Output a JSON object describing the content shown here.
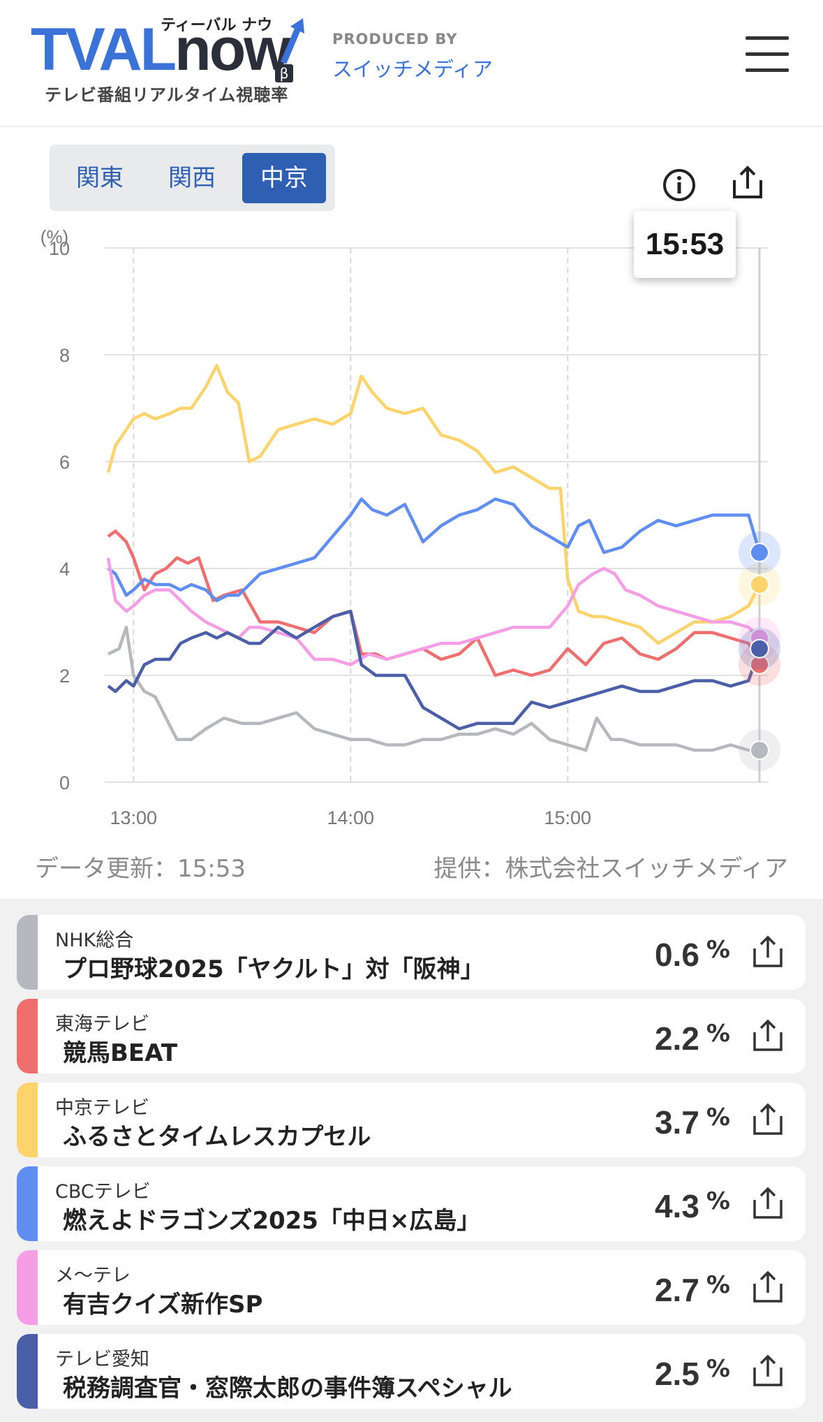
{
  "header": {
    "logo_main": "TVAL",
    "logo_now": "now",
    "logo_kana": "ティーバル ナウ",
    "logo_beta": "β",
    "logo_sub": "テレビ番組リアルタイム視聴率",
    "produced_by": "PRODUCED BY",
    "company": "スイッチメディア",
    "menu_icon": "hamburger-menu-icon"
  },
  "regions": {
    "tabs": [
      "関東",
      "関西",
      "中京"
    ],
    "active": "中京"
  },
  "icons": {
    "info": "info-icon",
    "share": "share-icon"
  },
  "tooltip_time": "15:53",
  "footer": {
    "updated": "データ更新：15:53",
    "provider": "提供：株式会社スイッチメディア"
  },
  "chart_data": {
    "type": "line",
    "ylabel": "(%)",
    "ylim": [
      0,
      10
    ],
    "yticks": [
      "0",
      "2",
      "4",
      "6",
      "8",
      "10"
    ],
    "x_range": [
      "12:53",
      "15:53"
    ],
    "xticks": [
      "13:00",
      "14:00",
      "15:00"
    ],
    "grid": true,
    "series": [
      {
        "name": "NHK総合",
        "color": "#b5b8bd",
        "points": [
          [
            "12:53",
            2.4
          ],
          [
            "12:56",
            2.5
          ],
          [
            "12:58",
            2.9
          ],
          [
            "13:00",
            2.0
          ],
          [
            "13:03",
            1.7
          ],
          [
            "13:06",
            1.6
          ],
          [
            "13:09",
            1.2
          ],
          [
            "13:12",
            0.8
          ],
          [
            "13:16",
            0.8
          ],
          [
            "13:20",
            1.0
          ],
          [
            "13:25",
            1.2
          ],
          [
            "13:30",
            1.1
          ],
          [
            "13:35",
            1.1
          ],
          [
            "13:40",
            1.2
          ],
          [
            "13:45",
            1.3
          ],
          [
            "13:50",
            1.0
          ],
          [
            "13:55",
            0.9
          ],
          [
            "14:00",
            0.8
          ],
          [
            "14:05",
            0.8
          ],
          [
            "14:10",
            0.7
          ],
          [
            "14:15",
            0.7
          ],
          [
            "14:20",
            0.8
          ],
          [
            "14:25",
            0.8
          ],
          [
            "14:30",
            0.9
          ],
          [
            "14:35",
            0.9
          ],
          [
            "14:40",
            1.0
          ],
          [
            "14:45",
            0.9
          ],
          [
            "14:50",
            1.1
          ],
          [
            "14:55",
            0.8
          ],
          [
            "15:00",
            0.7
          ],
          [
            "15:05",
            0.6
          ],
          [
            "15:08",
            1.2
          ],
          [
            "15:12",
            0.8
          ],
          [
            "15:15",
            0.8
          ],
          [
            "15:20",
            0.7
          ],
          [
            "15:25",
            0.7
          ],
          [
            "15:30",
            0.7
          ],
          [
            "15:35",
            0.6
          ],
          [
            "15:40",
            0.6
          ],
          [
            "15:45",
            0.7
          ],
          [
            "15:50",
            0.6
          ],
          [
            "15:53",
            0.6
          ]
        ]
      },
      {
        "name": "東海テレビ",
        "color": "#ef6f6f",
        "points": [
          [
            "12:53",
            4.6
          ],
          [
            "12:55",
            4.7
          ],
          [
            "12:58",
            4.5
          ],
          [
            "13:00",
            4.2
          ],
          [
            "13:03",
            3.6
          ],
          [
            "13:06",
            3.9
          ],
          [
            "13:09",
            4.0
          ],
          [
            "13:12",
            4.2
          ],
          [
            "13:15",
            4.1
          ],
          [
            "13:18",
            4.2
          ],
          [
            "13:22",
            3.4
          ],
          [
            "13:25",
            3.5
          ],
          [
            "13:30",
            3.6
          ],
          [
            "13:35",
            3.0
          ],
          [
            "13:40",
            3.0
          ],
          [
            "13:45",
            2.9
          ],
          [
            "13:50",
            2.8
          ],
          [
            "13:55",
            3.1
          ],
          [
            "14:00",
            3.2
          ],
          [
            "14:03",
            2.4
          ],
          [
            "14:07",
            2.4
          ],
          [
            "14:10",
            2.3
          ],
          [
            "14:15",
            2.4
          ],
          [
            "14:20",
            2.5
          ],
          [
            "14:25",
            2.3
          ],
          [
            "14:30",
            2.4
          ],
          [
            "14:35",
            2.7
          ],
          [
            "14:40",
            2.0
          ],
          [
            "14:45",
            2.1
          ],
          [
            "14:50",
            2.0
          ],
          [
            "14:55",
            2.1
          ],
          [
            "15:00",
            2.5
          ],
          [
            "15:05",
            2.2
          ],
          [
            "15:10",
            2.6
          ],
          [
            "15:15",
            2.7
          ],
          [
            "15:20",
            2.4
          ],
          [
            "15:25",
            2.3
          ],
          [
            "15:30",
            2.5
          ],
          [
            "15:35",
            2.8
          ],
          [
            "15:40",
            2.8
          ],
          [
            "15:45",
            2.7
          ],
          [
            "15:50",
            2.6
          ],
          [
            "15:53",
            2.2
          ]
        ]
      },
      {
        "name": "中京テレビ",
        "color": "#fcd46b",
        "points": [
          [
            "12:53",
            5.8
          ],
          [
            "12:55",
            6.3
          ],
          [
            "12:58",
            6.6
          ],
          [
            "13:00",
            6.8
          ],
          [
            "13:03",
            6.9
          ],
          [
            "13:06",
            6.8
          ],
          [
            "13:10",
            6.9
          ],
          [
            "13:13",
            7.0
          ],
          [
            "13:16",
            7.0
          ],
          [
            "13:20",
            7.4
          ],
          [
            "13:23",
            7.8
          ],
          [
            "13:26",
            7.3
          ],
          [
            "13:29",
            7.1
          ],
          [
            "13:32",
            6.0
          ],
          [
            "13:35",
            6.1
          ],
          [
            "13:40",
            6.6
          ],
          [
            "13:45",
            6.7
          ],
          [
            "13:50",
            6.8
          ],
          [
            "13:55",
            6.7
          ],
          [
            "14:00",
            6.9
          ],
          [
            "14:03",
            7.6
          ],
          [
            "14:06",
            7.3
          ],
          [
            "14:10",
            7.0
          ],
          [
            "14:15",
            6.9
          ],
          [
            "14:20",
            7.0
          ],
          [
            "14:25",
            6.5
          ],
          [
            "14:30",
            6.4
          ],
          [
            "14:35",
            6.2
          ],
          [
            "14:40",
            5.8
          ],
          [
            "14:45",
            5.9
          ],
          [
            "14:50",
            5.7
          ],
          [
            "14:55",
            5.5
          ],
          [
            "14:58",
            5.5
          ],
          [
            "15:00",
            3.8
          ],
          [
            "15:03",
            3.2
          ],
          [
            "15:07",
            3.1
          ],
          [
            "15:10",
            3.1
          ],
          [
            "15:15",
            3.0
          ],
          [
            "15:20",
            2.9
          ],
          [
            "15:25",
            2.6
          ],
          [
            "15:30",
            2.8
          ],
          [
            "15:35",
            3.0
          ],
          [
            "15:40",
            3.0
          ],
          [
            "15:45",
            3.1
          ],
          [
            "15:50",
            3.3
          ],
          [
            "15:53",
            3.7
          ]
        ]
      },
      {
        "name": "CBCテレビ",
        "color": "#5f8ef0",
        "points": [
          [
            "12:53",
            4.0
          ],
          [
            "12:55",
            3.9
          ],
          [
            "12:58",
            3.5
          ],
          [
            "13:00",
            3.6
          ],
          [
            "13:03",
            3.8
          ],
          [
            "13:06",
            3.7
          ],
          [
            "13:10",
            3.7
          ],
          [
            "13:13",
            3.6
          ],
          [
            "13:16",
            3.7
          ],
          [
            "13:20",
            3.6
          ],
          [
            "13:23",
            3.4
          ],
          [
            "13:26",
            3.5
          ],
          [
            "13:29",
            3.5
          ],
          [
            "13:32",
            3.7
          ],
          [
            "13:35",
            3.9
          ],
          [
            "13:40",
            4.0
          ],
          [
            "13:45",
            4.1
          ],
          [
            "13:50",
            4.2
          ],
          [
            "13:55",
            4.6
          ],
          [
            "14:00",
            5.0
          ],
          [
            "14:03",
            5.3
          ],
          [
            "14:06",
            5.1
          ],
          [
            "14:10",
            5.0
          ],
          [
            "14:15",
            5.2
          ],
          [
            "14:20",
            4.5
          ],
          [
            "14:25",
            4.8
          ],
          [
            "14:30",
            5.0
          ],
          [
            "14:35",
            5.1
          ],
          [
            "14:40",
            5.3
          ],
          [
            "14:45",
            5.2
          ],
          [
            "14:50",
            4.8
          ],
          [
            "14:55",
            4.6
          ],
          [
            "15:00",
            4.4
          ],
          [
            "15:03",
            4.8
          ],
          [
            "15:06",
            4.9
          ],
          [
            "15:10",
            4.3
          ],
          [
            "15:15",
            4.4
          ],
          [
            "15:20",
            4.7
          ],
          [
            "15:25",
            4.9
          ],
          [
            "15:30",
            4.8
          ],
          [
            "15:35",
            4.9
          ],
          [
            "15:40",
            5.0
          ],
          [
            "15:45",
            5.0
          ],
          [
            "15:50",
            5.0
          ],
          [
            "15:53",
            4.3
          ]
        ]
      },
      {
        "name": "メ〜テレ",
        "color": "#f59ee5",
        "points": [
          [
            "12:53",
            4.2
          ],
          [
            "12:55",
            3.4
          ],
          [
            "12:58",
            3.2
          ],
          [
            "13:00",
            3.3
          ],
          [
            "13:03",
            3.5
          ],
          [
            "13:06",
            3.6
          ],
          [
            "13:10",
            3.6
          ],
          [
            "13:13",
            3.4
          ],
          [
            "13:16",
            3.2
          ],
          [
            "13:20",
            3.0
          ],
          [
            "13:23",
            2.9
          ],
          [
            "13:26",
            2.8
          ],
          [
            "13:29",
            2.7
          ],
          [
            "13:32",
            2.9
          ],
          [
            "13:35",
            2.9
          ],
          [
            "13:40",
            2.8
          ],
          [
            "13:45",
            2.7
          ],
          [
            "13:50",
            2.3
          ],
          [
            "13:55",
            2.3
          ],
          [
            "14:00",
            2.2
          ],
          [
            "14:05",
            2.4
          ],
          [
            "14:10",
            2.3
          ],
          [
            "14:15",
            2.4
          ],
          [
            "14:20",
            2.5
          ],
          [
            "14:25",
            2.6
          ],
          [
            "14:30",
            2.6
          ],
          [
            "14:35",
            2.7
          ],
          [
            "14:40",
            2.8
          ],
          [
            "14:45",
            2.9
          ],
          [
            "14:50",
            2.9
          ],
          [
            "14:55",
            2.9
          ],
          [
            "15:00",
            3.3
          ],
          [
            "15:03",
            3.7
          ],
          [
            "15:07",
            3.9
          ],
          [
            "15:10",
            4.0
          ],
          [
            "15:13",
            3.9
          ],
          [
            "15:16",
            3.6
          ],
          [
            "15:20",
            3.5
          ],
          [
            "15:25",
            3.3
          ],
          [
            "15:30",
            3.2
          ],
          [
            "15:35",
            3.1
          ],
          [
            "15:40",
            3.0
          ],
          [
            "15:45",
            3.0
          ],
          [
            "15:50",
            2.9
          ],
          [
            "15:53",
            2.7
          ]
        ]
      },
      {
        "name": "テレビ愛知",
        "color": "#4b5fa8",
        "points": [
          [
            "12:53",
            1.8
          ],
          [
            "12:55",
            1.7
          ],
          [
            "12:58",
            1.9
          ],
          [
            "13:00",
            1.8
          ],
          [
            "13:03",
            2.2
          ],
          [
            "13:06",
            2.3
          ],
          [
            "13:10",
            2.3
          ],
          [
            "13:13",
            2.6
          ],
          [
            "13:16",
            2.7
          ],
          [
            "13:20",
            2.8
          ],
          [
            "13:23",
            2.7
          ],
          [
            "13:26",
            2.8
          ],
          [
            "13:29",
            2.7
          ],
          [
            "13:32",
            2.6
          ],
          [
            "13:35",
            2.6
          ],
          [
            "13:40",
            2.9
          ],
          [
            "13:45",
            2.7
          ],
          [
            "13:50",
            2.9
          ],
          [
            "13:55",
            3.1
          ],
          [
            "14:00",
            3.2
          ],
          [
            "14:03",
            2.2
          ],
          [
            "14:07",
            2.0
          ],
          [
            "14:10",
            2.0
          ],
          [
            "14:15",
            2.0
          ],
          [
            "14:20",
            1.4
          ],
          [
            "14:25",
            1.2
          ],
          [
            "14:30",
            1.0
          ],
          [
            "14:35",
            1.1
          ],
          [
            "14:40",
            1.1
          ],
          [
            "14:45",
            1.1
          ],
          [
            "14:50",
            1.5
          ],
          [
            "14:55",
            1.4
          ],
          [
            "15:00",
            1.5
          ],
          [
            "15:05",
            1.6
          ],
          [
            "15:10",
            1.7
          ],
          [
            "15:15",
            1.8
          ],
          [
            "15:20",
            1.7
          ],
          [
            "15:25",
            1.7
          ],
          [
            "15:30",
            1.8
          ],
          [
            "15:35",
            1.9
          ],
          [
            "15:40",
            1.9
          ],
          [
            "15:45",
            1.8
          ],
          [
            "15:50",
            1.9
          ],
          [
            "15:53",
            2.5
          ]
        ]
      }
    ]
  },
  "channels": [
    {
      "channel": "NHK総合",
      "program": "プロ野球2025「ヤクルト」対「阪神」",
      "value": "0.6",
      "unit": "%",
      "color": "#b5b8bd"
    },
    {
      "channel": "東海テレビ",
      "program": "競馬BEAT",
      "value": "2.2",
      "unit": "%",
      "color": "#ef6f6f"
    },
    {
      "channel": "中京テレビ",
      "program": "ふるさとタイムレスカプセル",
      "value": "3.7",
      "unit": "%",
      "color": "#fcd46b"
    },
    {
      "channel": "CBCテレビ",
      "program": "燃えよドラゴンズ2025「中日×広島」",
      "value": "4.3",
      "unit": "%",
      "color": "#5f8ef0"
    },
    {
      "channel": "メ〜テレ",
      "program": "有吉クイズ新作SP",
      "value": "2.7",
      "unit": "%",
      "color": "#f59ee5"
    },
    {
      "channel": "テレビ愛知",
      "program": "税務調査官・窓際太郎の事件簿スペシャル",
      "value": "2.5",
      "unit": "%",
      "color": "#4b5fa8"
    }
  ]
}
